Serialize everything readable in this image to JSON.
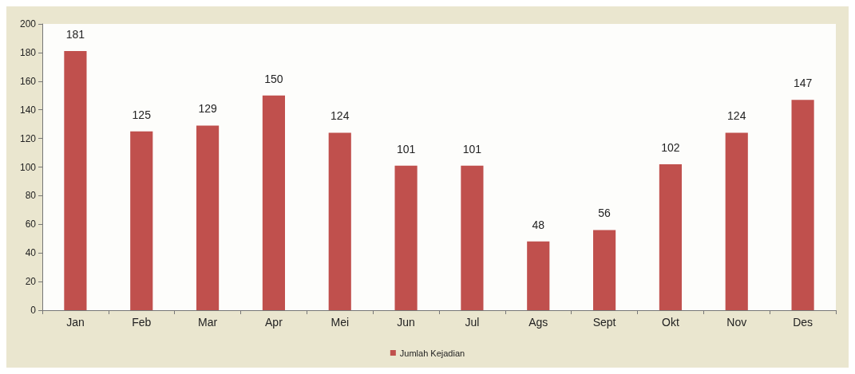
{
  "chart_data": {
    "type": "bar",
    "categories": [
      "Jan",
      "Feb",
      "Mar",
      "Apr",
      "Mei",
      "Jun",
      "Jul",
      "Ags",
      "Sept",
      "Okt",
      "Nov",
      "Des"
    ],
    "series": [
      {
        "name": "Jumlah Kejadian",
        "color": "#c0504d",
        "values": [
          181,
          125,
          129,
          150,
          124,
          101,
          101,
          48,
          56,
          102,
          124,
          147
        ]
      }
    ],
    "ylim": [
      0,
      200
    ],
    "yticks": [
      0,
      20,
      40,
      60,
      80,
      100,
      120,
      140,
      160,
      180,
      200
    ],
    "grid": false,
    "legend": "bottom",
    "data_labels": true
  }
}
